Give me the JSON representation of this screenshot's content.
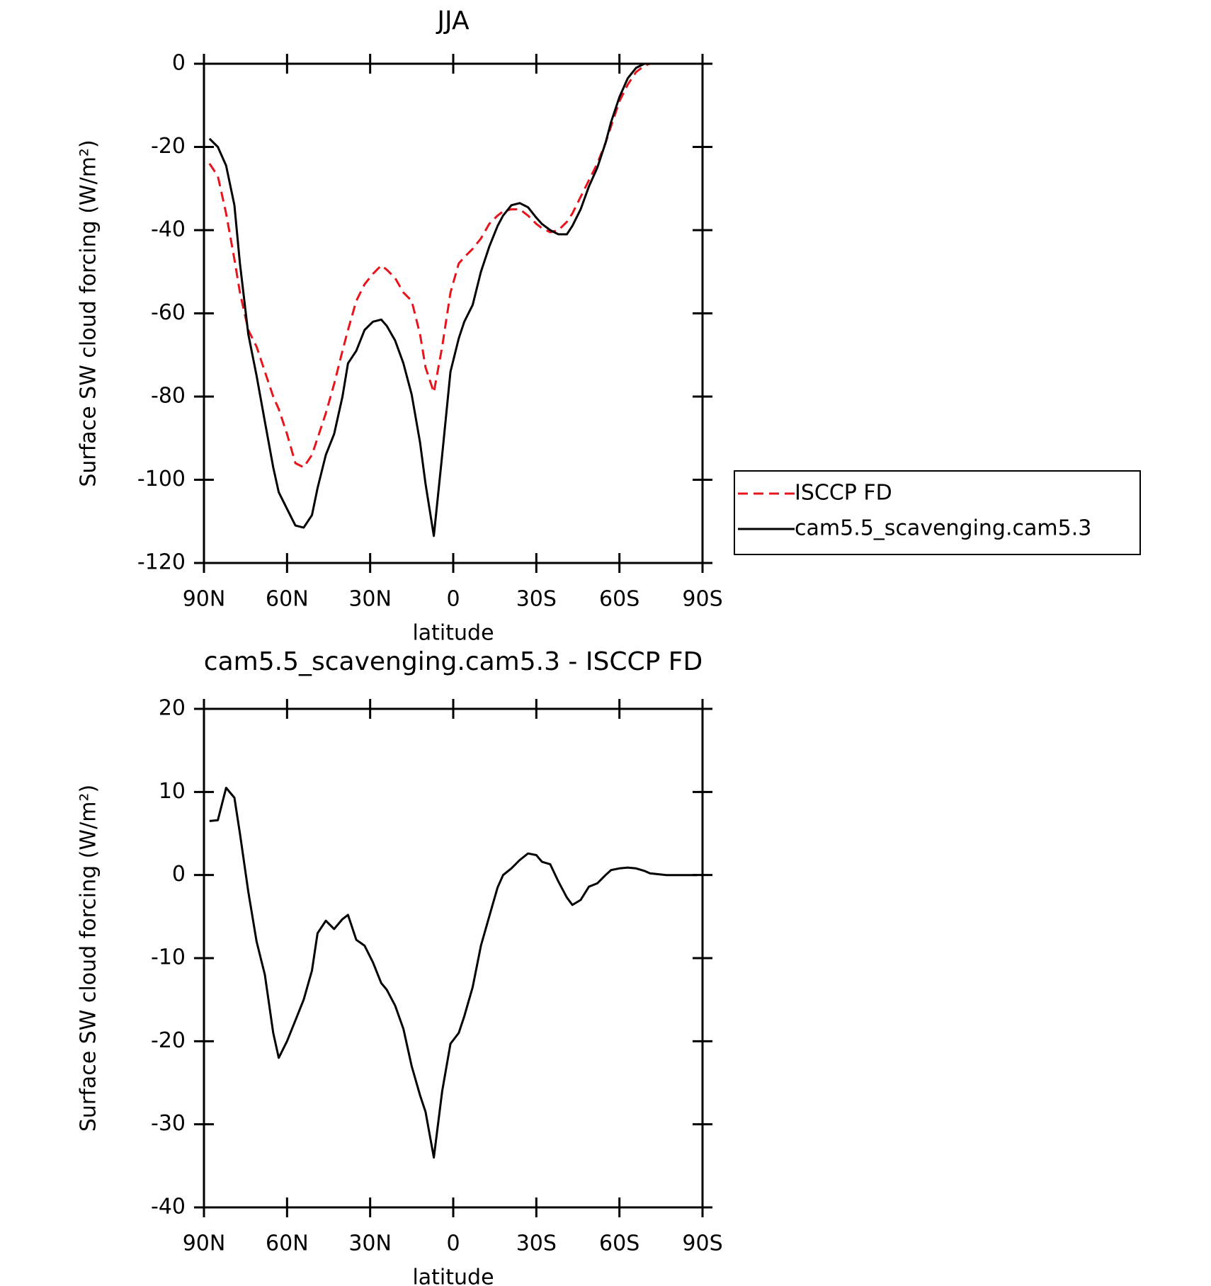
{
  "chart_data": [
    {
      "type": "line",
      "title": "JJA",
      "xlabel": "latitude",
      "ylabel": "Surface SW cloud forcing (W/m²)",
      "x": [
        88,
        85,
        82,
        79,
        77,
        74,
        71,
        68,
        65,
        63,
        60,
        57,
        54,
        51,
        49,
        46,
        43,
        40,
        38,
        35,
        32,
        29,
        26,
        24,
        21,
        18,
        15,
        12,
        10,
        7,
        4,
        1,
        -2,
        -4,
        -7,
        -10,
        -13,
        -16,
        -18,
        -21,
        -24,
        -27,
        -30,
        -32,
        -35,
        -38,
        -41,
        -43,
        -46,
        -49,
        -52,
        -55,
        -57,
        -60,
        -63,
        -66,
        -69,
        -71,
        -74,
        -77,
        -80,
        -83,
        -85,
        -88
      ],
      "series": [
        {
          "name": "ISCCP FD",
          "color": "#e8141c",
          "style": "dashed",
          "values": [
            -24,
            -27,
            -36,
            -47,
            -55,
            -64,
            -68,
            -74,
            -80,
            -83,
            -89,
            -96,
            -97,
            -94,
            -90,
            -84,
            -77,
            -69,
            -64,
            -57,
            -53,
            -50.5,
            -48.5,
            -49.5,
            -51.5,
            -55,
            -57,
            -65,
            -73,
            -79,
            -68,
            -55,
            -48,
            -46.5,
            -44.5,
            -42,
            -38.5,
            -36.5,
            -35.5,
            -35,
            -35,
            -36.5,
            -38.5,
            -39.5,
            -40.5,
            -40,
            -38,
            -36,
            -32,
            -28,
            -24,
            -19,
            -15,
            -9,
            -5,
            -2,
            -0.5,
            0,
            0,
            0,
            0,
            0,
            0,
            0
          ]
        },
        {
          "name": "cam5.5_scavenging.cam5.3",
          "color": "#000000",
          "style": "solid",
          "values": [
            -18,
            -20,
            -24.5,
            -34,
            -48,
            -65,
            -75,
            -86,
            -97,
            -103,
            -107,
            -111,
            -111.5,
            -108.5,
            -102,
            -94,
            -89,
            -80,
            -72,
            -69,
            -64,
            -62,
            -61.5,
            -63,
            -66.5,
            -72,
            -79.5,
            -91,
            -101,
            -113.5,
            -94,
            -74,
            -66,
            -62,
            -58,
            -50,
            -44,
            -39,
            -36.5,
            -34,
            -33.5,
            -34.5,
            -37,
            -38.5,
            -40,
            -41,
            -41,
            -39,
            -35,
            -29.5,
            -25,
            -19,
            -14,
            -8,
            -3.5,
            -1,
            0,
            0,
            0,
            0,
            0,
            0,
            0,
            0
          ]
        }
      ],
      "xlim": [
        90,
        -90
      ],
      "xticks": [
        {
          "value": 90,
          "label": "90N"
        },
        {
          "value": 60,
          "label": "60N"
        },
        {
          "value": 30,
          "label": "30N"
        },
        0,
        {
          "value": -30,
          "label": "30S"
        },
        {
          "value": -60,
          "label": "60S"
        },
        {
          "value": -90,
          "label": "90S"
        }
      ],
      "ylim": [
        -120,
        0
      ],
      "yticks": [
        0,
        -20,
        -40,
        -60,
        -80,
        -100,
        -120
      ],
      "legend": "right"
    },
    {
      "type": "line",
      "title": "cam5.5_scavenging.cam5.3 - ISCCP FD",
      "xlabel": "latitude",
      "ylabel": "Surface SW cloud forcing (W/m²)",
      "x": [
        88,
        85,
        82,
        79,
        77,
        74,
        71,
        68,
        65,
        63,
        60,
        57,
        54,
        51,
        49,
        46,
        43,
        40,
        38,
        35,
        32,
        29,
        26,
        24,
        21,
        18,
        15,
        12,
        10,
        7,
        4,
        1,
        -2,
        -4,
        -7,
        -10,
        -13,
        -16,
        -18,
        -21,
        -24,
        -27,
        -30,
        -32,
        -35,
        -38,
        -41,
        -43,
        -46,
        -49,
        -52,
        -55,
        -57,
        -60,
        -63,
        -66,
        -69,
        -71,
        -74,
        -77,
        -80,
        -83,
        -85,
        -88
      ],
      "series": [
        {
          "color": "#000000",
          "style": "solid",
          "values": [
            6.5,
            6.6,
            10.5,
            9.3,
            5,
            -2,
            -8,
            -12,
            -19,
            -22,
            -20,
            -17.5,
            -15,
            -11.5,
            -7,
            -5.5,
            -6.5,
            -5.3,
            -4.8,
            -7.8,
            -8.5,
            -10.5,
            -13,
            -13.8,
            -15.7,
            -18.5,
            -23,
            -26.5,
            -28.5,
            -34,
            -26,
            -20.3,
            -19,
            -17,
            -13.5,
            -8.5,
            -5,
            -1.5,
            0,
            0.8,
            1.8,
            2.6,
            2.4,
            1.6,
            1.3,
            -0.8,
            -2.7,
            -3.6,
            -3,
            -1.4,
            -1,
            0,
            0.6,
            0.8,
            0.9,
            0.8,
            0.5,
            0.2,
            0.1,
            0,
            0,
            0,
            0,
            0
          ]
        }
      ],
      "xlim": [
        90,
        -90
      ],
      "xticks": [
        {
          "value": 90,
          "label": "90N"
        },
        {
          "value": 60,
          "label": "60N"
        },
        {
          "value": 30,
          "label": "30N"
        },
        0,
        {
          "value": -30,
          "label": "30S"
        },
        {
          "value": -60,
          "label": "60S"
        },
        {
          "value": -90,
          "label": "90S"
        }
      ],
      "ylim": [
        -40,
        20
      ],
      "yticks": [
        20,
        10,
        0,
        -10,
        -20,
        -30,
        -40
      ]
    }
  ]
}
